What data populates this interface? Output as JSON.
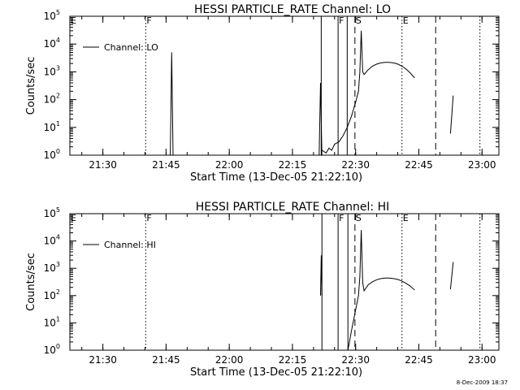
{
  "chart_data": [
    {
      "type": "line",
      "title": "HESSI PARTICLE_RATE Channel: LO",
      "xlabel": "Start Time (13-Dec-05 21:22:10)",
      "ylabel": "Counts/sec",
      "y_scale": "log",
      "xlim": [
        "21:22:10",
        "23:04:00"
      ],
      "ylim": [
        1,
        100000
      ],
      "x_ticks": [
        "21:30",
        "21:45",
        "22:00",
        "22:15",
        "22:30",
        "22:45",
        "23:00"
      ],
      "y_ticks": [
        {
          "base": "10",
          "exp": "0"
        },
        {
          "base": "10",
          "exp": "1"
        },
        {
          "base": "10",
          "exp": "2"
        },
        {
          "base": "10",
          "exp": "3"
        },
        {
          "base": "10",
          "exp": "4"
        },
        {
          "base": "10",
          "exp": "5"
        }
      ],
      "legend": {
        "position": "top-left",
        "entry": "Channel: LO"
      },
      "markers": [
        {
          "label": "E",
          "time": "21:22:10",
          "style": "none"
        },
        {
          "label": "F",
          "time": "21:40:10",
          "style": "dotted"
        },
        {
          "label": "F",
          "time": "22:25:50",
          "style": "solid"
        },
        {
          "label": "S",
          "time": "22:29:50",
          "style": "dashed"
        },
        {
          "label": "E",
          "time": "22:41:00",
          "style": "dotted"
        }
      ],
      "extra_lines": [
        {
          "time": "22:21:50",
          "style": "solid"
        },
        {
          "time": "22:28:00",
          "style": "solid"
        },
        {
          "time": "22:49:00",
          "style": "dashed"
        },
        {
          "time": "22:59:30",
          "style": "dotted"
        }
      ],
      "series": [
        {
          "name": "Channel: LO",
          "segments": [
            [
              [
                "21:46:00",
                1
              ],
              [
                "21:46:20",
                5000
              ],
              [
                "21:46:40",
                1
              ]
            ],
            [
              [
                "22:21:20",
                1
              ],
              [
                "22:21:40",
                400
              ],
              [
                "22:22:00",
                1
              ]
            ],
            [
              [
                "22:22:00",
                1.5
              ],
              [
                "22:23:00",
                1.2
              ],
              [
                "22:23:40",
                1.8
              ],
              [
                "22:24:20",
                1.5
              ],
              [
                "22:25:00",
                2.5
              ],
              [
                "22:26:00",
                3
              ],
              [
                "22:27:00",
                5
              ],
              [
                "22:28:00",
                10
              ],
              [
                "22:29:00",
                25
              ],
              [
                "22:30:00",
                80
              ],
              [
                "22:30:40",
                200
              ],
              [
                "22:31:00",
                1000
              ],
              [
                "22:31:20",
                30000
              ],
              [
                "22:31:40",
                1000
              ],
              [
                "22:32:00",
                800
              ],
              [
                "22:33:00",
                1200
              ],
              [
                "22:34:00",
                1600
              ],
              [
                "22:35:00",
                1900
              ],
              [
                "22:36:00",
                2100
              ],
              [
                "22:37:00",
                2200
              ],
              [
                "22:38:00",
                2200
              ],
              [
                "22:39:00",
                2100
              ],
              [
                "22:40:00",
                1900
              ],
              [
                "22:41:00",
                1600
              ],
              [
                "22:42:00",
                1250
              ],
              [
                "22:43:00",
                900
              ],
              [
                "22:44:00",
                600
              ]
            ],
            [
              [
                "22:52:30",
                6
              ],
              [
                "22:53:10",
                140
              ]
            ]
          ]
        }
      ]
    },
    {
      "type": "line",
      "title": "HESSI PARTICLE_RATE Channel: HI",
      "xlabel": "Start Time (13-Dec-05 21:22:10)",
      "ylabel": "Counts/sec",
      "y_scale": "log",
      "xlim": [
        "21:22:10",
        "23:04:00"
      ],
      "ylim": [
        1,
        100000
      ],
      "x_ticks": [
        "21:30",
        "21:45",
        "22:00",
        "22:15",
        "22:30",
        "22:45",
        "23:00"
      ],
      "y_ticks": [
        {
          "base": "10",
          "exp": "0"
        },
        {
          "base": "10",
          "exp": "1"
        },
        {
          "base": "10",
          "exp": "2"
        },
        {
          "base": "10",
          "exp": "3"
        },
        {
          "base": "10",
          "exp": "4"
        },
        {
          "base": "10",
          "exp": "5"
        }
      ],
      "legend": {
        "position": "top-left",
        "entry": "Channel: HI"
      },
      "markers": [
        {
          "label": "E",
          "time": "21:22:10",
          "style": "none"
        },
        {
          "label": "F",
          "time": "21:40:10",
          "style": "dotted"
        },
        {
          "label": "F",
          "time": "22:25:50",
          "style": "solid"
        },
        {
          "label": "S",
          "time": "22:29:50",
          "style": "dashed"
        },
        {
          "label": "E",
          "time": "22:41:00",
          "style": "dotted"
        }
      ],
      "extra_lines": [
        {
          "time": "22:22:00",
          "style": "solid"
        },
        {
          "time": "22:28:10",
          "style": "solid"
        },
        {
          "time": "22:49:00",
          "style": "dashed"
        },
        {
          "time": "22:59:30",
          "style": "dotted"
        }
      ],
      "series": [
        {
          "name": "Channel: HI",
          "segments": [
            [
              [
                "22:21:40",
                100
              ],
              [
                "22:21:50",
                3000
              ],
              [
                "22:22:00",
                100
              ]
            ],
            [
              [
                "22:28:10",
                1
              ],
              [
                "22:29:00",
                5
              ],
              [
                "22:30:00",
                30
              ],
              [
                "22:30:40",
                100
              ],
              [
                "22:31:00",
                500
              ],
              [
                "22:31:20",
                25000
              ],
              [
                "22:31:40",
                300
              ],
              [
                "22:32:00",
                150
              ],
              [
                "22:33:00",
                250
              ],
              [
                "22:34:00",
                320
              ],
              [
                "22:35:00",
                380
              ],
              [
                "22:36:00",
                420
              ],
              [
                "22:37:00",
                440
              ],
              [
                "22:38:00",
                440
              ],
              [
                "22:39:00",
                420
              ],
              [
                "22:40:00",
                390
              ],
              [
                "22:41:00",
                340
              ],
              [
                "22:42:00",
                280
              ],
              [
                "22:43:00",
                220
              ],
              [
                "22:44:00",
                160
              ]
            ],
            [
              [
                "22:52:30",
                170
              ],
              [
                "22:53:10",
                1700
              ]
            ]
          ]
        }
      ]
    }
  ],
  "footer": {
    "timestamp": "8-Dec-2009 18:37"
  }
}
